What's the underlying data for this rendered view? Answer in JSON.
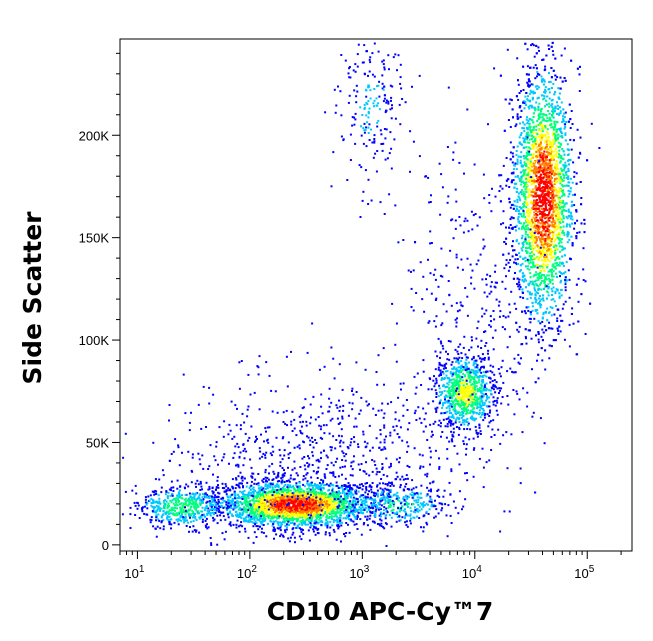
{
  "chart_data": {
    "type": "scatter",
    "style": "density-dot-plot",
    "xlabel": "CD10 APC-Cy™",
    "xlabel_suffix": "7",
    "ylabel": "Side Scatter",
    "x_scale": "log",
    "y_scale": "linear",
    "xlim": [
      7,
      250000
    ],
    "ylim": [
      -3000,
      247000
    ],
    "x_ticks": [
      {
        "value": 10,
        "base": "10",
        "exp": "1"
      },
      {
        "value": 100,
        "base": "10",
        "exp": "2"
      },
      {
        "value": 1000,
        "base": "10",
        "exp": "3"
      },
      {
        "value": 10000,
        "base": "10",
        "exp": "4"
      },
      {
        "value": 100000,
        "base": "10",
        "exp": "5"
      }
    ],
    "y_ticks": [
      {
        "value": 0,
        "label": "0"
      },
      {
        "value": 50000,
        "label": "50K"
      },
      {
        "value": 100000,
        "label": "100K"
      },
      {
        "value": 150000,
        "label": "150K"
      },
      {
        "value": 200000,
        "label": "200K"
      }
    ],
    "grid": false,
    "legend": "none",
    "colormap": [
      "#0000ff",
      "#00c8ff",
      "#00ff80",
      "#ffff00",
      "#ff8000",
      "#ff0000"
    ],
    "populations": [
      {
        "x_center": 250,
        "x_log_sd": 0.33,
        "y_center": 20000,
        "y_sd": 5500,
        "count": 2600,
        "peak": 0.95
      },
      {
        "x_center": 25,
        "x_log_sd": 0.2,
        "y_center": 19000,
        "y_sd": 5000,
        "count": 500,
        "peak": 0.45
      },
      {
        "x_center": 2000,
        "x_log_sd": 0.22,
        "y_center": 20000,
        "y_sd": 5000,
        "count": 300,
        "peak": 0.35
      },
      {
        "x_center": 8000,
        "x_log_sd": 0.13,
        "y_center": 75000,
        "y_sd": 9000,
        "count": 900,
        "peak": 0.6
      },
      {
        "x_center": 40000,
        "x_log_sd": 0.13,
        "y_center": 170000,
        "y_sd": 30000,
        "count": 3300,
        "peak": 1.0
      },
      {
        "x_center": 150,
        "x_log_sd": 0.55,
        "y_center": 40000,
        "y_sd": 20000,
        "count": 400,
        "peak": 0.1
      },
      {
        "x_center": 1000,
        "x_log_sd": 0.45,
        "y_center": 45000,
        "y_sd": 20000,
        "count": 350,
        "peak": 0.1
      },
      {
        "x_center": 10000,
        "x_log_sd": 0.35,
        "y_center": 120000,
        "y_sd": 45000,
        "count": 350,
        "peak": 0.1
      },
      {
        "x_center": 1200,
        "x_log_sd": 0.15,
        "y_center": 215000,
        "y_sd": 20000,
        "count": 220,
        "peak": 0.15
      }
    ]
  }
}
